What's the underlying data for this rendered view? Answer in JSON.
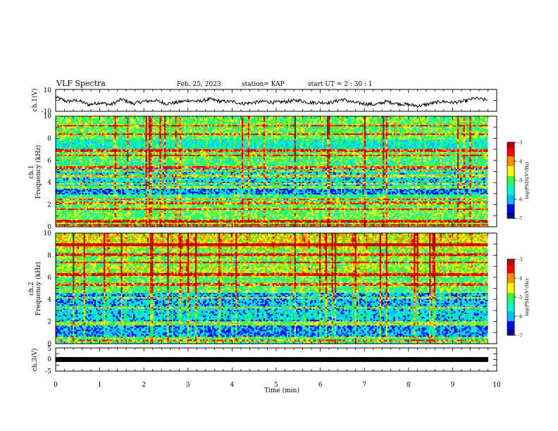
{
  "header": {
    "title": "VLF Spectra",
    "date": "Feb. 25, 2023",
    "station": "station= KAP",
    "start": "start  UT  =   2  : 30 : 1"
  },
  "colors": {
    "waveform": "#000000",
    "colormap": [
      "#00008b",
      "#0000ff",
      "#00bfff",
      "#00ffc8",
      "#3cff3c",
      "#ffff00",
      "#ff9000",
      "#ff0000",
      "#b40000",
      "#ffffff"
    ]
  },
  "chart_data": [
    {
      "type": "line",
      "panel": "ch1-waveform",
      "ylabel": "ch.1(V)",
      "ylim": [
        -10,
        10
      ],
      "yticks": [
        "10",
        "-10"
      ],
      "xlim": [
        0,
        10
      ],
      "series": [
        {
          "x": [
            0,
            0.25,
            0.5,
            0.75,
            1.0,
            1.25,
            1.5,
            1.75,
            2.0,
            2.25,
            2.5,
            2.75,
            3.0,
            3.25,
            3.5,
            3.75,
            4.0,
            4.25,
            4.5,
            4.75,
            5.0,
            5.25,
            5.5,
            5.75,
            6.0,
            6.25,
            6.5,
            6.75,
            7.0,
            7.25,
            7.5,
            7.75,
            8.0,
            8.25,
            8.5,
            8.75,
            9.0,
            9.25,
            9.5,
            9.8
          ],
          "values": [
            3,
            -1,
            0,
            -4,
            -2,
            -4,
            1,
            -3,
            -1,
            0,
            -3,
            -2,
            0,
            -1,
            1,
            -1,
            -1,
            -3,
            -2,
            -1,
            -2,
            -1,
            0,
            -2,
            -2,
            -2,
            1,
            -2,
            -3,
            -4,
            -1,
            -3,
            -4,
            -5,
            -3,
            -1,
            -2,
            -1,
            2,
            0
          ]
        }
      ]
    },
    {
      "type": "heatmap",
      "panel": "ch1-spectrogram",
      "ylabel": "ch.1\nFrequency (kHz)",
      "xlim": [
        0,
        10
      ],
      "ylim": [
        0,
        10
      ],
      "yticks": [
        "0",
        "2",
        "4",
        "6",
        "8",
        "10"
      ],
      "colorbar": {
        "label": "log(PSD)(V²/Hz)",
        "range": [
          -7,
          -3
        ],
        "ticks": [
          "-3",
          "-4",
          "-5",
          "-6",
          "-7"
        ]
      },
      "bands_khz": [
        0.2,
        0.5,
        1.6,
        2.2,
        2.5,
        3.6,
        3.9,
        4.6,
        5.1,
        5.4,
        6.5,
        6.9,
        8.4,
        9.2
      ],
      "level_by_khz": [
        {
          "from": 0,
          "to": 0.6,
          "level": -4.8
        },
        {
          "from": 0.6,
          "to": 2.0,
          "level": -5.0
        },
        {
          "from": 2.0,
          "to": 3.0,
          "level": -5.3
        },
        {
          "from": 3.0,
          "to": 3.7,
          "level": -6.2
        },
        {
          "from": 3.7,
          "to": 5.2,
          "level": -5.8
        },
        {
          "from": 5.2,
          "to": 6.2,
          "level": -5.2
        },
        {
          "from": 6.2,
          "to": 7.0,
          "level": -5.0
        },
        {
          "from": 7.0,
          "to": 8.0,
          "level": -5.6
        },
        {
          "from": 8.0,
          "to": 10,
          "level": -5.0
        }
      ]
    },
    {
      "type": "heatmap",
      "panel": "ch2-spectrogram",
      "ylabel": "ch.2\nFrequency (kHz)",
      "xlim": [
        0,
        10
      ],
      "ylim": [
        0,
        10
      ],
      "yticks": [
        "0",
        "2",
        "4",
        "6",
        "8",
        "10"
      ],
      "colorbar": {
        "label": "log(PSD)(V²/Hz)",
        "range": [
          -7,
          -3
        ],
        "ticks": [
          "-3",
          "-4",
          "-5",
          "-6",
          "-7"
        ]
      },
      "bands_khz": [
        0.3,
        0.6,
        1.8,
        2.0,
        3.3,
        4.2,
        5.4,
        6.3,
        7.4,
        8.1,
        9.0
      ],
      "level_by_khz": [
        {
          "from": 0,
          "to": 0.5,
          "level": -5.2
        },
        {
          "from": 0.5,
          "to": 2.2,
          "level": -6.1
        },
        {
          "from": 2.2,
          "to": 3.4,
          "level": -5.8
        },
        {
          "from": 3.4,
          "to": 4.6,
          "level": -6.0
        },
        {
          "from": 4.6,
          "to": 6.0,
          "level": -5.1
        },
        {
          "from": 6.0,
          "to": 7.0,
          "level": -4.7
        },
        {
          "from": 7.0,
          "to": 8.6,
          "level": -4.9
        },
        {
          "from": 8.6,
          "to": 10,
          "level": -4.4
        }
      ]
    },
    {
      "type": "line",
      "panel": "ch3-waveform",
      "ylabel": "ch.3(V)",
      "ylim": [
        -5,
        5
      ],
      "yticks": [
        "5",
        "0",
        "-5"
      ],
      "xlim": [
        0,
        10
      ],
      "series": [
        {
          "x": [
            0,
            9.8
          ],
          "values": [
            0,
            0
          ]
        }
      ]
    }
  ],
  "x_axis": {
    "label": "Time (min)",
    "ticks": [
      "0",
      "1",
      "2",
      "3",
      "4",
      "5",
      "6",
      "7",
      "8",
      "9",
      "10"
    ]
  }
}
